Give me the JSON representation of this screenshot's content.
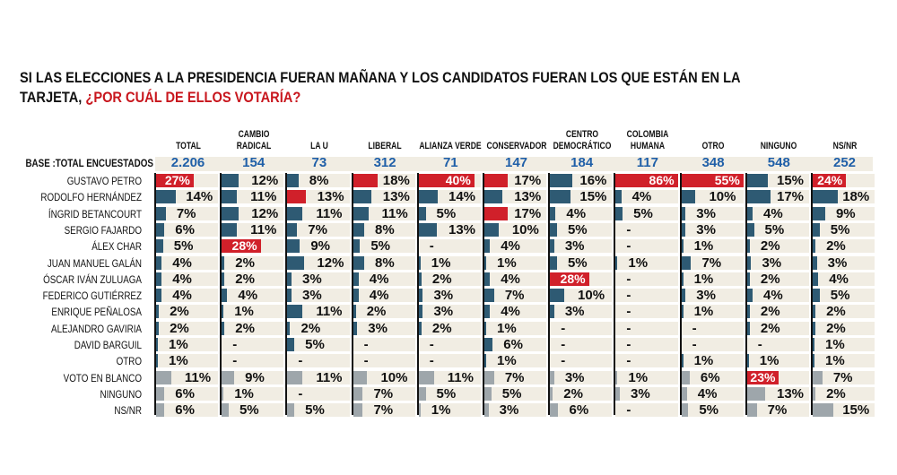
{
  "title": {
    "line1": "SI LAS ELECCIONES A LA PRESIDENCIA FUERAN MAÑANA Y LOS CANDIDATOS FUERAN LOS QUE ESTÁN EN LA",
    "line2_plain": "TARJETA, ",
    "line2_highlight": "¿POR CUÁL DE ELLOS VOTARÍA?"
  },
  "colors": {
    "candidate_bar": "#2e5a73",
    "leader_bar": "#d0202a",
    "other_bar": "#9ea6ab",
    "row_bg": "#f1ede3",
    "base_number": "#1f5fa8"
  },
  "chart_data": {
    "type": "table",
    "base_label": "BASE :TOTAL ENCUESTADOS",
    "rows": [
      "GUSTAVO PETRO",
      "RODOLFO HERNÁNDEZ",
      "ÍNGRID BETANCOURT",
      "SERGIO FAJARDO",
      "ÁLEX CHAR",
      "JUAN MANUEL GALÁN",
      "ÓSCAR IVÁN ZULUAGA",
      "FEDERICO GUTIÉRREZ",
      "ENRIQUE PEÑALOSA",
      "ALEJANDRO GAVIRIA",
      "DAVID BARGUIL",
      "OTRO",
      "VOTO EN BLANCO",
      "NINGUNO",
      "NS/NR"
    ],
    "grey_rows": [
      "VOTO EN BLANCO",
      "NINGUNO",
      "NS/NR"
    ],
    "columns": [
      {
        "name": "TOTAL",
        "base": "2.206",
        "values": [
          "27%",
          "14%",
          "7%",
          "6%",
          "5%",
          "4%",
          "4%",
          "4%",
          "2%",
          "2%",
          "1%",
          "1%",
          "11%",
          "6%",
          "6%"
        ],
        "highlight": [
          0
        ]
      },
      {
        "name": "CAMBIO RADICAL",
        "base": "154",
        "values": [
          "12%",
          "11%",
          "12%",
          "11%",
          "28%",
          "2%",
          "2%",
          "4%",
          "1%",
          "2%",
          "-",
          "-",
          "9%",
          "1%",
          "5%"
        ],
        "highlight": [
          4
        ]
      },
      {
        "name": "LA U",
        "base": "73",
        "values": [
          "8%",
          "13%",
          "11%",
          "7%",
          "9%",
          "12%",
          "3%",
          "3%",
          "11%",
          "2%",
          "5%",
          "-",
          "11%",
          "-",
          "5%"
        ],
        "highlight": [
          1
        ]
      },
      {
        "name": "LIBERAL",
        "base": "312",
        "values": [
          "18%",
          "13%",
          "11%",
          "8%",
          "5%",
          "8%",
          "4%",
          "4%",
          "2%",
          "3%",
          "-",
          "-",
          "10%",
          "7%",
          "7%"
        ],
        "highlight": [
          0
        ]
      },
      {
        "name": "ALIANZA VERDE",
        "base": "71",
        "values": [
          "40%",
          "14%",
          "5%",
          "13%",
          "-",
          "1%",
          "2%",
          "3%",
          "3%",
          "2%",
          "-",
          "-",
          "11%",
          "5%",
          "1%"
        ],
        "highlight": [
          0
        ]
      },
      {
        "name": "CONSERVADOR",
        "base": "147",
        "values": [
          "17%",
          "13%",
          "17%",
          "10%",
          "4%",
          "1%",
          "4%",
          "7%",
          "4%",
          "1%",
          "6%",
          "1%",
          "7%",
          "5%",
          "3%"
        ],
        "highlight": [
          0,
          2
        ]
      },
      {
        "name": "CENTRO DEMOCRÁTICO",
        "base": "184",
        "values": [
          "16%",
          "15%",
          "4%",
          "5%",
          "3%",
          "5%",
          "28%",
          "10%",
          "3%",
          "-",
          "-",
          "-",
          "3%",
          "2%",
          "6%"
        ],
        "highlight": [
          6
        ]
      },
      {
        "name": "COLOMBIA HUMANA",
        "base": "117",
        "values": [
          "86%",
          "4%",
          "5%",
          "-",
          "-",
          "1%",
          "-",
          "-",
          "-",
          "-",
          "-",
          "-",
          "1%",
          "3%",
          "-"
        ],
        "highlight": [
          0
        ]
      },
      {
        "name": "OTRO",
        "base": "348",
        "values": [
          "55%",
          "10%",
          "3%",
          "3%",
          "1%",
          "7%",
          "1%",
          "3%",
          "1%",
          "-",
          "-",
          "1%",
          "6%",
          "4%",
          "5%"
        ],
        "highlight": [
          0
        ]
      },
      {
        "name": "NINGUNO",
        "base": "548",
        "values": [
          "15%",
          "17%",
          "4%",
          "5%",
          "2%",
          "3%",
          "2%",
          "4%",
          "2%",
          "2%",
          "-",
          "1%",
          "23%",
          "13%",
          "7%"
        ],
        "highlight": [
          12
        ]
      },
      {
        "name": "NS/NR",
        "base": "252",
        "values": [
          "24%",
          "18%",
          "9%",
          "5%",
          "2%",
          "3%",
          "4%",
          "5%",
          "2%",
          "2%",
          "1%",
          "1%",
          "7%",
          "2%",
          "15%"
        ],
        "highlight": [
          0
        ]
      }
    ]
  }
}
